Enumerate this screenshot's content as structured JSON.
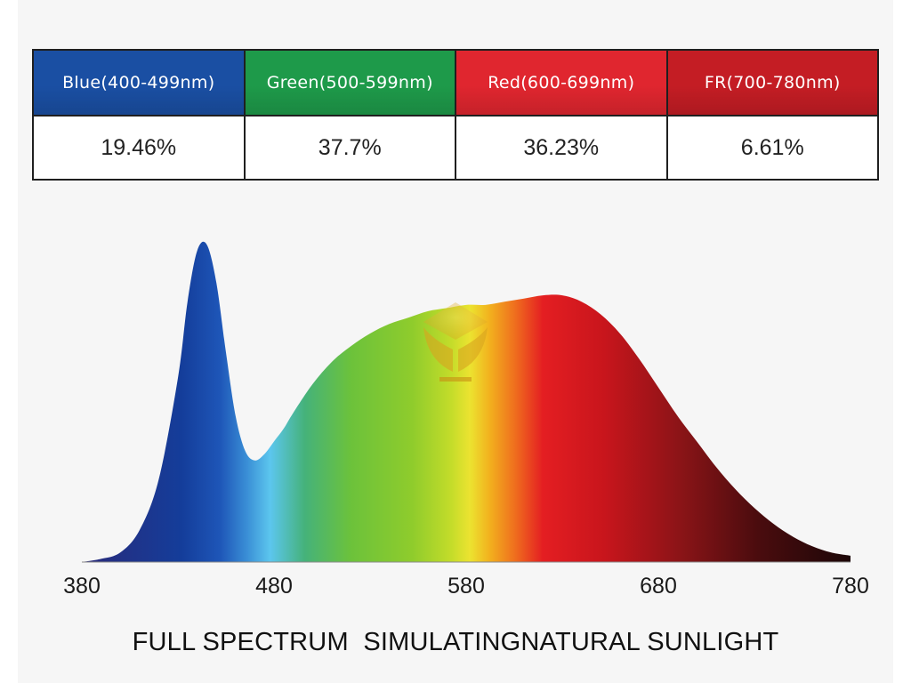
{
  "table": {
    "headers": [
      {
        "label": "Blue(400-499nm)",
        "color": "#1a4fa3"
      },
      {
        "label": "Green(500-599nm)",
        "color": "#1e9a4a"
      },
      {
        "label": "Red(600-699nm)",
        "color": "#e0262f"
      },
      {
        "label": "FR(700-780nm)",
        "color": "#c41d24"
      }
    ],
    "values": [
      "19.46%",
      "37.7%",
      "36.23%",
      "6.61%"
    ]
  },
  "caption": "FULL SPECTRUM  SIMULATINGNATURAL SUNLIGHT",
  "chart_data": {
    "type": "area",
    "title": "",
    "xlabel": "",
    "ylabel": "",
    "xlim": [
      380,
      780
    ],
    "ylim": [
      0,
      1
    ],
    "x_ticks": [
      "380",
      "480",
      "580",
      "680",
      "780"
    ],
    "grid": false,
    "legend": "none",
    "series": [
      {
        "x": [
          380,
          390,
          400,
          410,
          420,
          430,
          435,
          440,
          445,
          450,
          455,
          460,
          465,
          470,
          475,
          480,
          485,
          490,
          500,
          510,
          520,
          530,
          540,
          550,
          560,
          570,
          580,
          590,
          600,
          610,
          620,
          630,
          640,
          650,
          660,
          670,
          680,
          690,
          700,
          710,
          720,
          730,
          740,
          750,
          760,
          770,
          780
        ],
        "y": [
          0.0,
          0.01,
          0.03,
          0.1,
          0.26,
          0.58,
          0.82,
          0.98,
          1.0,
          0.88,
          0.66,
          0.46,
          0.35,
          0.32,
          0.34,
          0.38,
          0.42,
          0.47,
          0.56,
          0.63,
          0.68,
          0.72,
          0.75,
          0.77,
          0.79,
          0.8,
          0.81,
          0.81,
          0.82,
          0.83,
          0.84,
          0.84,
          0.82,
          0.78,
          0.72,
          0.64,
          0.55,
          0.46,
          0.38,
          0.3,
          0.23,
          0.17,
          0.12,
          0.08,
          0.05,
          0.03,
          0.02
        ]
      }
    ]
  }
}
